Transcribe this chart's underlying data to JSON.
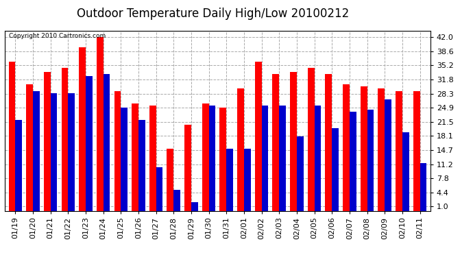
{
  "title": "Outdoor Temperature Daily High/Low 20100212",
  "copyright": "Copyright 2010 Cartronics.com",
  "dates": [
    "01/19",
    "01/20",
    "01/21",
    "01/22",
    "01/23",
    "01/24",
    "01/25",
    "01/26",
    "01/27",
    "01/28",
    "01/29",
    "01/30",
    "01/31",
    "02/01",
    "02/02",
    "02/03",
    "02/04",
    "02/05",
    "02/06",
    "02/07",
    "02/08",
    "02/09",
    "02/10",
    "02/11"
  ],
  "highs": [
    36.0,
    30.5,
    33.5,
    34.5,
    39.5,
    42.0,
    29.0,
    26.0,
    25.5,
    15.0,
    20.8,
    26.0,
    25.0,
    29.5,
    36.0,
    33.0,
    33.5,
    34.5,
    33.0,
    30.5,
    30.0,
    29.5,
    29.0,
    29.0
  ],
  "lows": [
    22.0,
    29.0,
    28.5,
    28.5,
    32.5,
    33.0,
    25.0,
    22.0,
    10.5,
    5.0,
    2.0,
    25.5,
    15.0,
    15.0,
    25.5,
    25.5,
    18.0,
    25.5,
    20.0,
    24.0,
    24.5,
    27.0,
    19.0,
    11.5
  ],
  "high_color": "#ff0000",
  "low_color": "#0000cc",
  "bg_color": "#ffffff",
  "yticks": [
    1.0,
    4.4,
    7.8,
    11.2,
    14.7,
    18.1,
    21.5,
    24.9,
    28.3,
    31.8,
    35.2,
    38.6,
    42.0
  ],
  "ymin": 0.0,
  "ymax": 43.5,
  "grid_color": "#aaaaaa",
  "title_fontsize": 12,
  "tick_fontsize": 8,
  "bar_width": 0.38
}
